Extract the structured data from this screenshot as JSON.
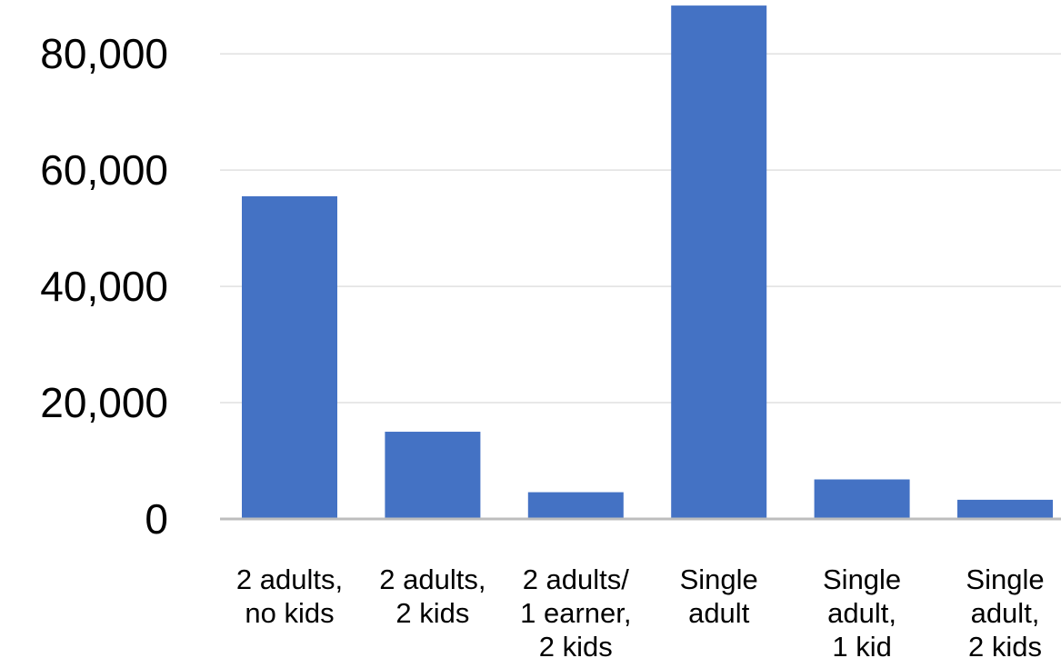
{
  "chart_data": {
    "type": "bar",
    "title": "",
    "xlabel": "",
    "ylabel": "",
    "categories": [
      [
        "2 adults,",
        "no kids"
      ],
      [
        "2 adults,",
        "2 kids"
      ],
      [
        "2 adults/",
        "1 earner,",
        "2 kids"
      ],
      [
        "Single",
        "adult"
      ],
      [
        "Single",
        "adult,",
        "1 kid"
      ],
      [
        "Single",
        "adult,",
        "2 kids"
      ]
    ],
    "values": [
      55500,
      15000,
      4600,
      88300,
      6800,
      3300
    ],
    "ylim": [
      0,
      88300
    ],
    "yticks": [
      {
        "value": 0,
        "label": "0"
      },
      {
        "value": 20000,
        "label": "20,000"
      },
      {
        "value": 40000,
        "label": "40,000"
      },
      {
        "value": 60000,
        "label": "60,000"
      },
      {
        "value": 80000,
        "label": "80,000"
      }
    ],
    "grid": true,
    "legend": "none",
    "bar_color": "#4472C4"
  }
}
